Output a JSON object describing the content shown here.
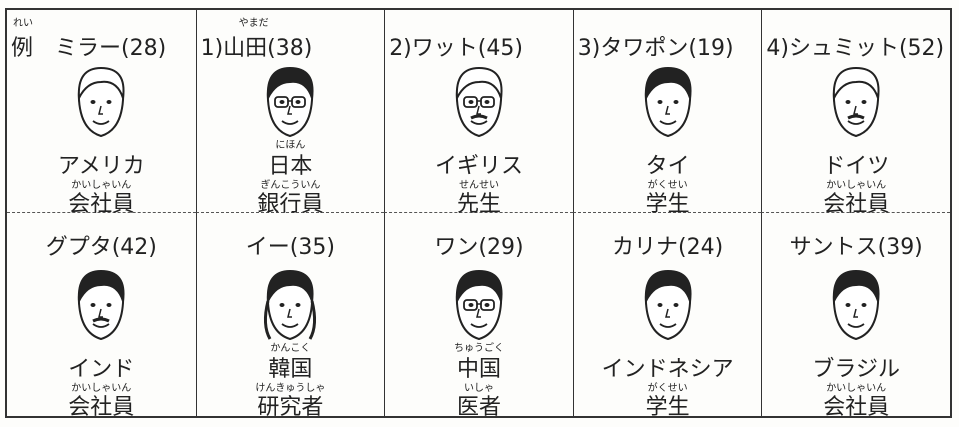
{
  "cards": [
    {
      "label_ruby": "れい",
      "label": "例　ミラー(28)",
      "country": "アメリカ",
      "job_ruby": "かいしゃいん",
      "job": "会社員"
    },
    {
      "label_ruby": "やまだ",
      "label": "1)山田(38)",
      "country_ruby": "にほん",
      "country": "日本",
      "job_ruby": "ぎんこういん",
      "job": "銀行員"
    },
    {
      "label": "2)ワット(45)",
      "country": "イギリス",
      "job_ruby": "せんせい",
      "job": "先生"
    },
    {
      "label": "3)タワポン(19)",
      "country": "タイ",
      "job_ruby": "がくせい",
      "job": "学生"
    },
    {
      "label": "4)シュミット(52)",
      "country": "ドイツ",
      "job_ruby": "かいしゃいん",
      "job": "会社員"
    },
    {
      "label": "グプタ(42)",
      "country": "インド",
      "job_ruby": "かいしゃいん",
      "job": "会社員"
    },
    {
      "label": "イー(35)",
      "country_ruby": "かんこく",
      "country": "韓国",
      "job_ruby": "けんきゅうしゃ",
      "job": "研究者"
    },
    {
      "label": "ワン(29)",
      "country_ruby": "ちゅうごく",
      "country": "中国",
      "job_ruby": "いしゃ",
      "job": "医者"
    },
    {
      "label": "カリナ(24)",
      "country": "インドネシア",
      "job_ruby": "がくせい",
      "job": "学生"
    },
    {
      "label": "サントス(39)",
      "country": "ブラジル",
      "job_ruby": "かいしゃいん",
      "job": "会社員"
    }
  ]
}
